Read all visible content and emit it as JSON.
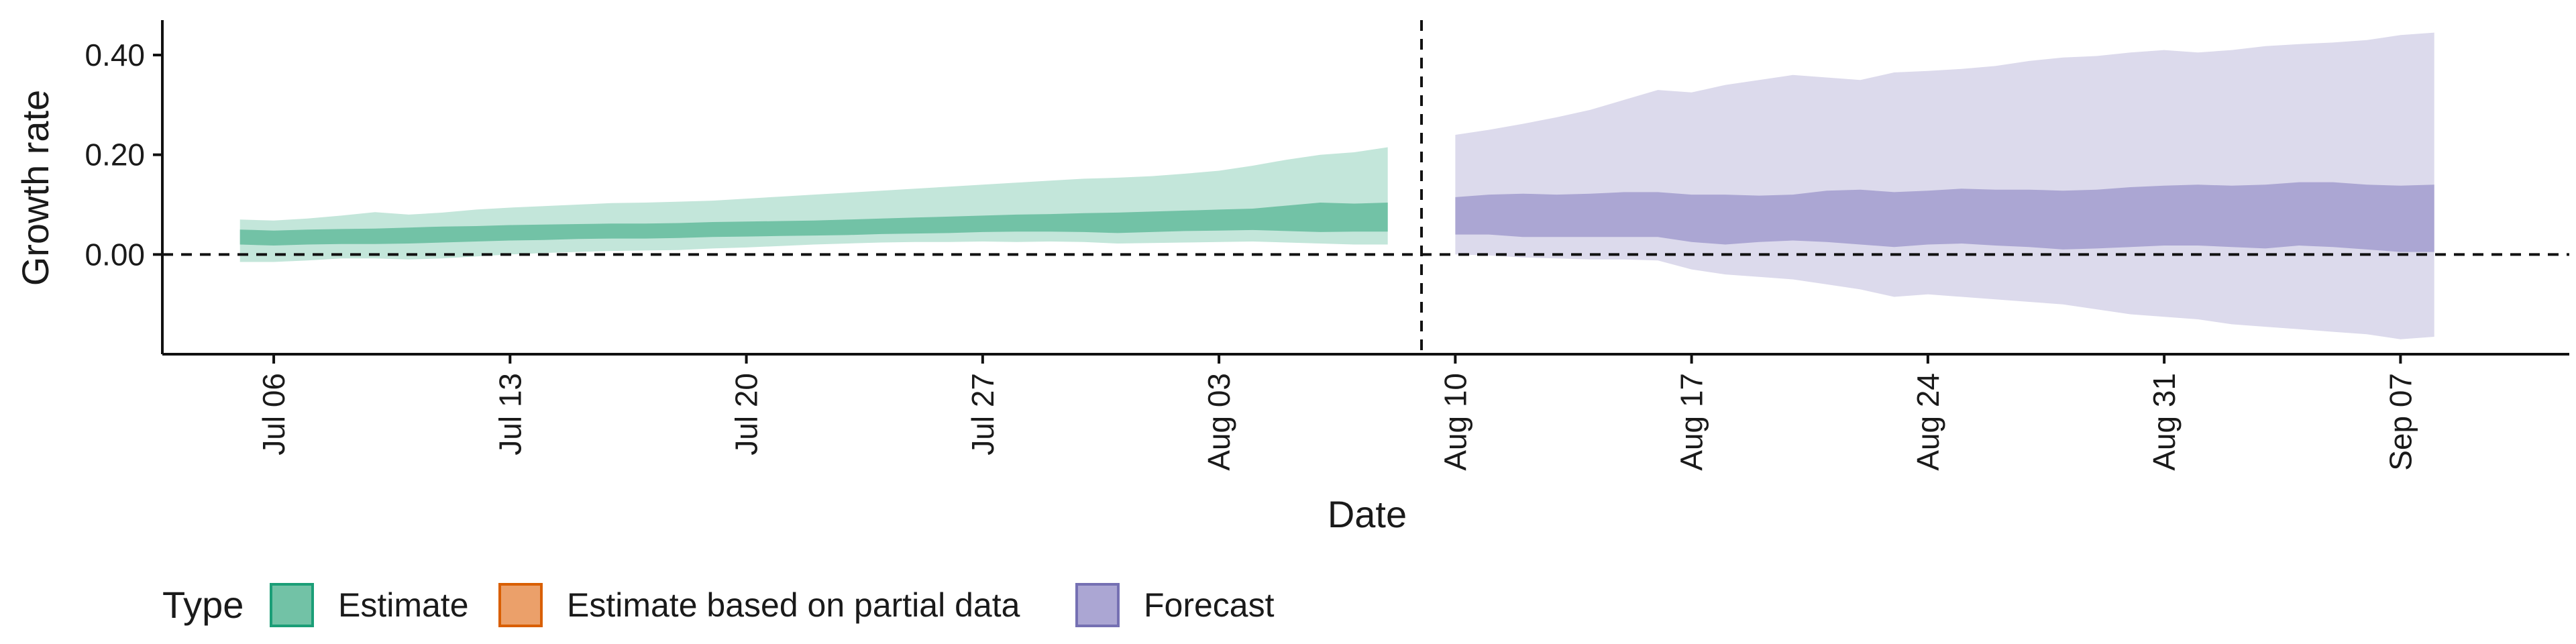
{
  "chart_data": {
    "type": "area",
    "title": "",
    "xlabel": "Date",
    "ylabel": "Growth rate",
    "ylim": [
      -0.2,
      0.47
    ],
    "yticks": [
      0.0,
      0.2,
      0.4
    ],
    "ytick_labels": [
      "0.00",
      "0.20",
      "0.40"
    ],
    "xlim_days": [
      -3.3,
      68.0
    ],
    "xticks": [
      {
        "day": 0,
        "label": "Jul 06"
      },
      {
        "day": 7,
        "label": "Jul 13"
      },
      {
        "day": 14,
        "label": "Jul 20"
      },
      {
        "day": 21,
        "label": "Jul 27"
      },
      {
        "day": 28,
        "label": "Aug 03"
      },
      {
        "day": 35,
        "label": "Aug 10"
      },
      {
        "day": 42,
        "label": "Aug 17"
      },
      {
        "day": 49,
        "label": "Aug 24"
      },
      {
        "day": 56,
        "label": "Aug 31"
      },
      {
        "day": 63,
        "label": "Sep 07"
      }
    ],
    "reference_lines": {
      "horizontal_y": 0.0,
      "vertical_day": 34
    },
    "legend": {
      "title": "Type",
      "placement": "bottom-left",
      "entries": [
        {
          "label": "Estimate",
          "fill": "#72c2a6",
          "stroke": "#1b9e77"
        },
        {
          "label": "Estimate based on partial data",
          "fill": "#eba06a",
          "stroke": "#d95f02"
        },
        {
          "label": "Forecast",
          "fill": "#aba6d3",
          "stroke": "#7570b3"
        }
      ]
    },
    "series": [
      {
        "name": "Estimate",
        "outer_fill": "#c3e6da",
        "inner_fill": "#72c2a6",
        "x_days": [
          -1,
          0,
          1,
          2,
          3,
          4,
          5,
          6,
          7,
          8,
          9,
          10,
          11,
          12,
          13,
          14,
          15,
          16,
          17,
          18,
          19,
          20,
          21,
          22,
          23,
          24,
          25,
          26,
          27,
          28,
          29,
          30,
          31,
          32,
          33
        ],
        "outer_lower": [
          -0.015,
          -0.015,
          -0.012,
          -0.008,
          -0.008,
          -0.01,
          -0.008,
          -0.004,
          0.0,
          0.003,
          0.005,
          0.007,
          0.008,
          0.009,
          0.012,
          0.014,
          0.017,
          0.02,
          0.022,
          0.024,
          0.025,
          0.025,
          0.026,
          0.025,
          0.026,
          0.025,
          0.022,
          0.023,
          0.024,
          0.025,
          0.026,
          0.024,
          0.022,
          0.02,
          0.02
        ],
        "inner_lower": [
          0.02,
          0.018,
          0.02,
          0.021,
          0.021,
          0.022,
          0.024,
          0.026,
          0.028,
          0.029,
          0.031,
          0.032,
          0.032,
          0.033,
          0.035,
          0.036,
          0.037,
          0.038,
          0.039,
          0.041,
          0.042,
          0.043,
          0.045,
          0.046,
          0.046,
          0.045,
          0.043,
          0.045,
          0.047,
          0.048,
          0.049,
          0.047,
          0.045,
          0.046,
          0.046
        ],
        "inner_upper": [
          0.05,
          0.048,
          0.05,
          0.051,
          0.052,
          0.054,
          0.056,
          0.057,
          0.059,
          0.06,
          0.061,
          0.062,
          0.062,
          0.063,
          0.065,
          0.066,
          0.067,
          0.068,
          0.07,
          0.072,
          0.074,
          0.076,
          0.078,
          0.08,
          0.081,
          0.083,
          0.084,
          0.086,
          0.088,
          0.09,
          0.092,
          0.098,
          0.104,
          0.102,
          0.104
        ],
        "outer_upper": [
          0.07,
          0.068,
          0.072,
          0.078,
          0.085,
          0.08,
          0.084,
          0.09,
          0.094,
          0.097,
          0.1,
          0.103,
          0.104,
          0.106,
          0.108,
          0.112,
          0.116,
          0.12,
          0.124,
          0.128,
          0.132,
          0.136,
          0.14,
          0.144,
          0.148,
          0.152,
          0.154,
          0.157,
          0.162,
          0.168,
          0.178,
          0.19,
          0.2,
          0.205,
          0.215
        ]
      },
      {
        "name": "Forecast",
        "outer_fill": "#dcdaec",
        "inner_fill": "#aba6d3",
        "x_days": [
          35,
          36,
          37,
          38,
          39,
          40,
          41,
          42,
          43,
          44,
          45,
          46,
          47,
          48,
          49,
          50,
          51,
          52,
          53,
          54,
          55,
          56,
          57,
          58,
          59,
          60,
          61,
          62,
          63,
          64
        ],
        "outer_lower": [
          0.0,
          -0.002,
          -0.006,
          -0.008,
          -0.01,
          -0.01,
          -0.012,
          -0.03,
          -0.04,
          -0.045,
          -0.05,
          -0.06,
          -0.07,
          -0.085,
          -0.08,
          -0.085,
          -0.09,
          -0.095,
          -0.1,
          -0.11,
          -0.12,
          -0.125,
          -0.13,
          -0.14,
          -0.145,
          -0.15,
          -0.155,
          -0.16,
          -0.17,
          -0.165
        ],
        "inner_lower": [
          0.04,
          0.04,
          0.035,
          0.035,
          0.035,
          0.035,
          0.035,
          0.025,
          0.02,
          0.025,
          0.028,
          0.025,
          0.02,
          0.015,
          0.02,
          0.022,
          0.018,
          0.015,
          0.01,
          0.012,
          0.015,
          0.018,
          0.018,
          0.015,
          0.012,
          0.018,
          0.015,
          0.01,
          0.005,
          0.005
        ],
        "inner_upper": [
          0.115,
          0.12,
          0.122,
          0.12,
          0.122,
          0.125,
          0.125,
          0.12,
          0.12,
          0.118,
          0.12,
          0.128,
          0.13,
          0.125,
          0.128,
          0.132,
          0.13,
          0.13,
          0.128,
          0.13,
          0.135,
          0.138,
          0.14,
          0.138,
          0.14,
          0.145,
          0.145,
          0.14,
          0.138,
          0.14
        ],
        "outer_upper": [
          0.24,
          0.25,
          0.262,
          0.275,
          0.29,
          0.31,
          0.33,
          0.325,
          0.34,
          0.35,
          0.36,
          0.355,
          0.35,
          0.365,
          0.368,
          0.372,
          0.378,
          0.388,
          0.395,
          0.398,
          0.405,
          0.41,
          0.405,
          0.41,
          0.418,
          0.422,
          0.425,
          0.43,
          0.44,
          0.445
        ]
      }
    ]
  }
}
